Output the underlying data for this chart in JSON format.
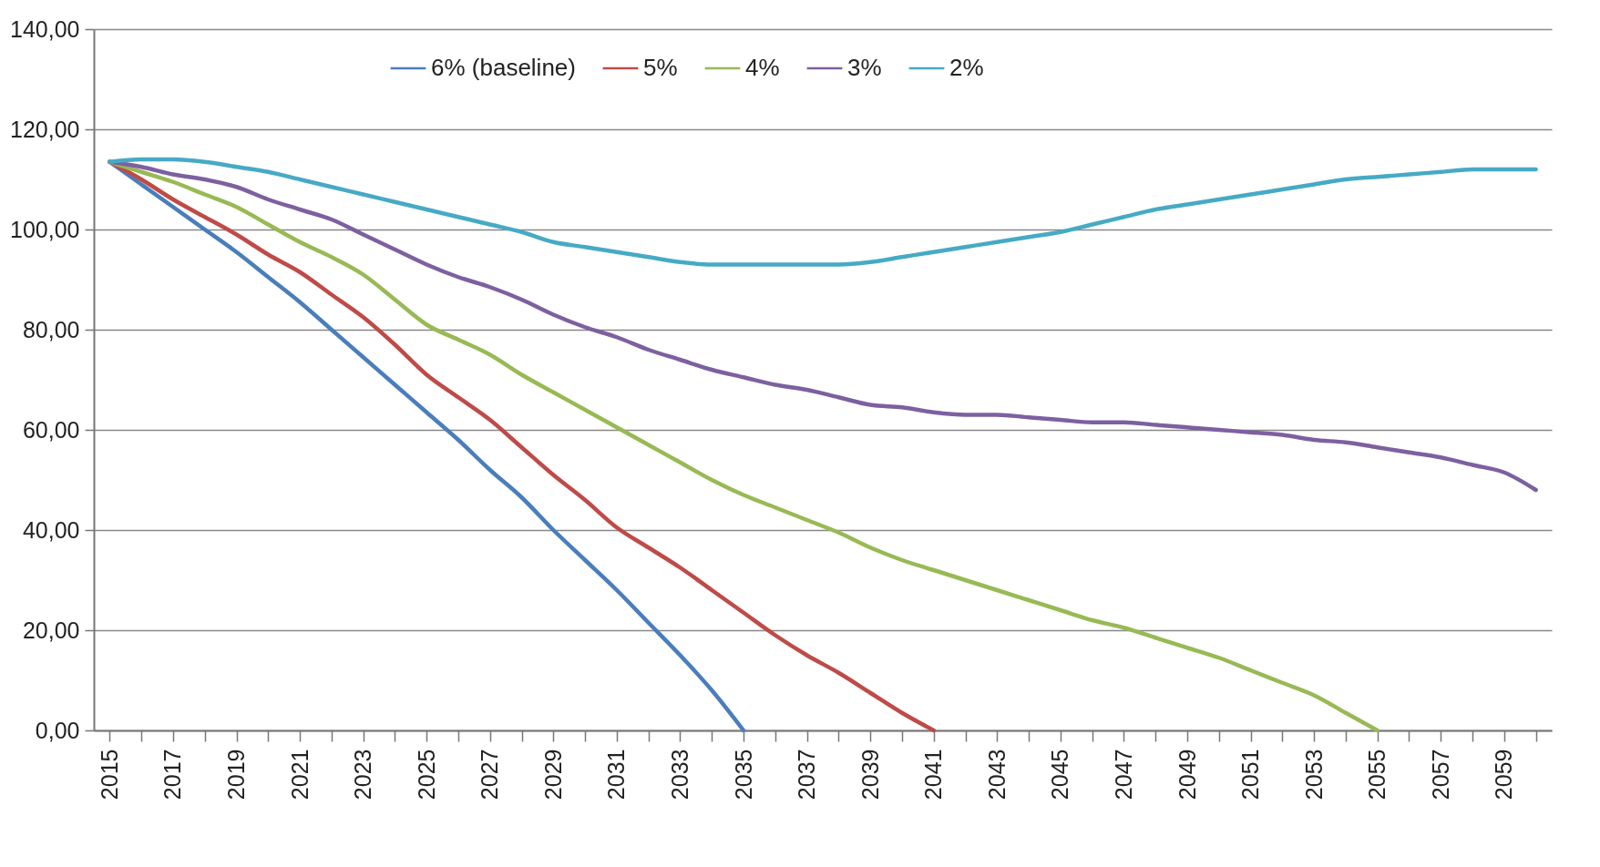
{
  "chart_data": {
    "type": "line",
    "categories": [
      "2015",
      null,
      "2017",
      null,
      "2019",
      null,
      "2021",
      null,
      "2023",
      null,
      "2025",
      null,
      "2027",
      null,
      "2029",
      null,
      "2031",
      null,
      "2033",
      null,
      "2035",
      null,
      "2037",
      null,
      "2039",
      null,
      "2041",
      null,
      "2043",
      null,
      "2045",
      null,
      "2047",
      null,
      "2049",
      null,
      "2051",
      null,
      "2053",
      null,
      "2055",
      null,
      "2057",
      null,
      "2059",
      null
    ],
    "ylim": [
      0,
      140
    ],
    "yticks": [
      {
        "value": 0,
        "label": "0,00"
      },
      {
        "value": 20,
        "label": "20,00"
      },
      {
        "value": 40,
        "label": "40,00"
      },
      {
        "value": 60,
        "label": "60,00"
      },
      {
        "value": 80,
        "label": "80,00"
      },
      {
        "value": 100,
        "label": "100,00"
      },
      {
        "value": 120,
        "label": "120,00"
      },
      {
        "value": 140,
        "label": "140,00"
      }
    ],
    "grid": "y",
    "legend": "top",
    "marker": "none",
    "line_style": "solid",
    "series": [
      {
        "name": "6% (baseline)",
        "color": "#4a7ebb",
        "values": [
          113.5,
          109,
          104.5,
          100,
          95.5,
          90.5,
          85.5,
          80,
          74.5,
          69,
          63.5,
          58,
          52,
          46.5,
          40,
          34,
          28,
          21.5,
          15,
          8,
          0,
          null,
          null,
          null,
          null,
          null,
          null,
          null,
          null,
          null,
          null,
          null,
          null,
          null,
          null,
          null,
          null,
          null,
          null,
          null,
          null,
          null,
          null,
          null,
          null,
          null
        ]
      },
      {
        "name": "5%",
        "color": "#be4b48",
        "values": [
          113.5,
          110,
          106,
          102.5,
          99,
          95,
          91.5,
          87,
          82.5,
          77,
          71,
          66.5,
          62,
          56.5,
          51,
          46,
          40.5,
          36.5,
          32.5,
          28,
          23.5,
          19,
          15,
          11.5,
          7.5,
          3.5,
          0,
          null,
          null,
          null,
          null,
          null,
          null,
          null,
          null,
          null,
          null,
          null,
          null,
          null,
          null,
          null,
          null,
          null,
          null,
          null
        ]
      },
      {
        "name": "4%",
        "color": "#98b954",
        "values": [
          113.5,
          111.5,
          109.5,
          107,
          104.5,
          101,
          97.5,
          94.5,
          91,
          86,
          81,
          78,
          75,
          71,
          67.5,
          64,
          60.5,
          57,
          53.5,
          50,
          47,
          44.5,
          42,
          39.5,
          36.5,
          34,
          32,
          30,
          28,
          26,
          24,
          22,
          20.5,
          18.5,
          16.5,
          14.5,
          12,
          9.5,
          7,
          3.5,
          0,
          null,
          null,
          null,
          null,
          null
        ]
      },
      {
        "name": "3%",
        "color": "#7d60a0",
        "values": [
          113.5,
          112.5,
          111,
          110,
          108.5,
          106,
          104,
          102,
          99,
          96,
          93,
          90.5,
          88.5,
          86,
          83,
          80.5,
          78.5,
          76,
          74,
          72,
          70.5,
          69,
          68,
          66.5,
          65,
          64.5,
          63.5,
          63,
          63,
          62.5,
          62,
          61.5,
          61.5,
          61,
          60.5,
          60,
          59.5,
          59,
          58,
          57.5,
          56.5,
          55.5,
          54.5,
          53,
          51.5,
          48
        ]
      },
      {
        "name": "2%",
        "color": "#46aac5",
        "values": [
          113.5,
          114,
          114,
          113.5,
          112.5,
          111.5,
          110,
          108.5,
          107,
          105.5,
          104,
          102.5,
          101,
          99.5,
          97.5,
          96.5,
          95.5,
          94.5,
          93.5,
          93,
          93,
          93,
          93,
          93,
          93.5,
          94.5,
          95.5,
          96.5,
          97.5,
          98.5,
          99.5,
          101,
          102.5,
          104,
          105,
          106,
          107,
          108,
          109,
          110,
          110.5,
          111,
          111.5,
          112,
          112,
          112
        ]
      }
    ]
  }
}
